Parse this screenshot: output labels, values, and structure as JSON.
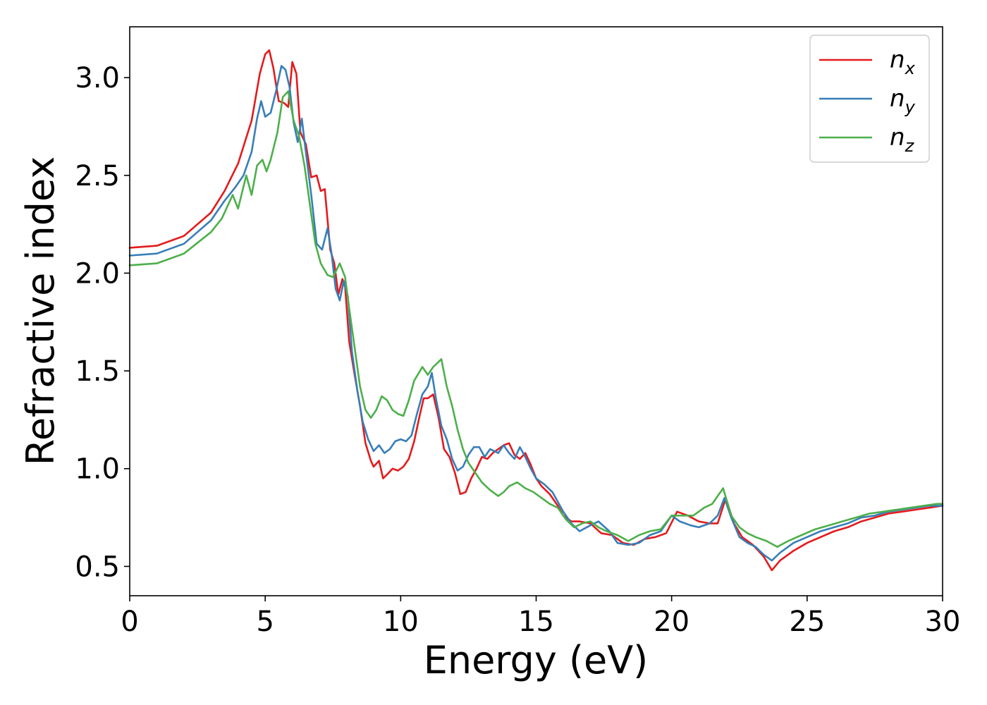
{
  "chart_data": {
    "type": "line",
    "title": "",
    "xlabel": "Energy (eV)",
    "ylabel": "Refractive index",
    "xlim": [
      0,
      30
    ],
    "ylim": [
      0.35,
      3.26
    ],
    "xticks": [
      0,
      5,
      10,
      15,
      20,
      25,
      30
    ],
    "xtick_labels": [
      "0",
      "5",
      "10",
      "15",
      "20",
      "25",
      "30"
    ],
    "yticks": [
      0.5,
      1.0,
      1.5,
      2.0,
      2.5,
      3.0
    ],
    "ytick_labels": [
      "0.5",
      "1.0",
      "1.5",
      "2.0",
      "2.5",
      "3.0"
    ],
    "grid": false,
    "legend_position": "top-right",
    "series": [
      {
        "name": "n",
        "subscript": "x",
        "color": "#e41a1c",
        "points": [
          [
            0,
            2.13
          ],
          [
            1,
            2.14
          ],
          [
            2,
            2.19
          ],
          [
            3,
            2.31
          ],
          [
            3.5,
            2.42
          ],
          [
            4,
            2.56
          ],
          [
            4.5,
            2.78
          ],
          [
            4.8,
            3.02
          ],
          [
            5.0,
            3.12
          ],
          [
            5.15,
            3.14
          ],
          [
            5.3,
            3.05
          ],
          [
            5.5,
            2.88
          ],
          [
            5.7,
            2.87
          ],
          [
            5.85,
            2.85
          ],
          [
            6.0,
            3.08
          ],
          [
            6.15,
            3.02
          ],
          [
            6.3,
            2.72
          ],
          [
            6.5,
            2.66
          ],
          [
            6.7,
            2.49
          ],
          [
            6.9,
            2.5
          ],
          [
            7.05,
            2.42
          ],
          [
            7.2,
            2.43
          ],
          [
            7.4,
            2.12
          ],
          [
            7.55,
            2.05
          ],
          [
            7.7,
            1.89
          ],
          [
            7.85,
            1.97
          ],
          [
            7.95,
            1.93
          ],
          [
            8.1,
            1.65
          ],
          [
            8.3,
            1.48
          ],
          [
            8.5,
            1.32
          ],
          [
            8.7,
            1.13
          ],
          [
            8.9,
            1.04
          ],
          [
            9.0,
            1.01
          ],
          [
            9.2,
            1.04
          ],
          [
            9.35,
            0.95
          ],
          [
            9.5,
            0.97
          ],
          [
            9.7,
            1.0
          ],
          [
            9.9,
            0.99
          ],
          [
            10.1,
            1.01
          ],
          [
            10.3,
            1.05
          ],
          [
            10.5,
            1.14
          ],
          [
            10.7,
            1.27
          ],
          [
            10.85,
            1.36
          ],
          [
            11.0,
            1.36
          ],
          [
            11.2,
            1.38
          ],
          [
            11.4,
            1.26
          ],
          [
            11.6,
            1.1
          ],
          [
            11.8,
            1.06
          ],
          [
            12.0,
            0.98
          ],
          [
            12.2,
            0.87
          ],
          [
            12.4,
            0.88
          ],
          [
            12.6,
            0.95
          ],
          [
            12.8,
            1.0
          ],
          [
            13.0,
            1.06
          ],
          [
            13.2,
            1.05
          ],
          [
            13.4,
            1.08
          ],
          [
            13.6,
            1.1
          ],
          [
            13.8,
            1.12
          ],
          [
            14.0,
            1.13
          ],
          [
            14.2,
            1.07
          ],
          [
            14.4,
            1.05
          ],
          [
            14.6,
            1.08
          ],
          [
            14.8,
            1.02
          ],
          [
            15.0,
            0.95
          ],
          [
            15.2,
            0.91
          ],
          [
            15.5,
            0.87
          ],
          [
            15.8,
            0.81
          ],
          [
            16.0,
            0.76
          ],
          [
            16.3,
            0.73
          ],
          [
            16.6,
            0.73
          ],
          [
            17.0,
            0.72
          ],
          [
            17.4,
            0.67
          ],
          [
            17.8,
            0.66
          ],
          [
            18.2,
            0.62
          ],
          [
            18.6,
            0.61
          ],
          [
            19.0,
            0.64
          ],
          [
            19.4,
            0.65
          ],
          [
            19.8,
            0.67
          ],
          [
            20.2,
            0.78
          ],
          [
            20.6,
            0.76
          ],
          [
            21.0,
            0.73
          ],
          [
            21.4,
            0.72
          ],
          [
            21.7,
            0.72
          ],
          [
            22.0,
            0.85
          ],
          [
            22.3,
            0.72
          ],
          [
            22.6,
            0.65
          ],
          [
            23.0,
            0.61
          ],
          [
            23.4,
            0.55
          ],
          [
            23.7,
            0.48
          ],
          [
            24.0,
            0.53
          ],
          [
            24.5,
            0.58
          ],
          [
            25.0,
            0.62
          ],
          [
            25.5,
            0.65
          ],
          [
            26.0,
            0.68
          ],
          [
            26.5,
            0.7
          ],
          [
            27.0,
            0.73
          ],
          [
            27.5,
            0.75
          ],
          [
            28.0,
            0.77
          ],
          [
            28.5,
            0.78
          ],
          [
            29.0,
            0.79
          ],
          [
            29.5,
            0.8
          ],
          [
            30.0,
            0.81
          ]
        ]
      },
      {
        "name": "n",
        "subscript": "y",
        "color": "#377eb8",
        "points": [
          [
            0,
            2.09
          ],
          [
            1,
            2.1
          ],
          [
            2,
            2.15
          ],
          [
            3,
            2.27
          ],
          [
            3.5,
            2.37
          ],
          [
            3.9,
            2.44
          ],
          [
            4.2,
            2.5
          ],
          [
            4.5,
            2.62
          ],
          [
            4.7,
            2.79
          ],
          [
            4.85,
            2.88
          ],
          [
            5.0,
            2.8
          ],
          [
            5.2,
            2.82
          ],
          [
            5.4,
            2.93
          ],
          [
            5.6,
            3.06
          ],
          [
            5.75,
            3.04
          ],
          [
            5.9,
            2.95
          ],
          [
            6.05,
            2.77
          ],
          [
            6.2,
            2.67
          ],
          [
            6.35,
            2.79
          ],
          [
            6.5,
            2.62
          ],
          [
            6.7,
            2.4
          ],
          [
            6.9,
            2.15
          ],
          [
            7.1,
            2.12
          ],
          [
            7.3,
            2.23
          ],
          [
            7.45,
            2.1
          ],
          [
            7.6,
            1.92
          ],
          [
            7.75,
            1.86
          ],
          [
            7.9,
            1.96
          ],
          [
            8.05,
            1.88
          ],
          [
            8.2,
            1.6
          ],
          [
            8.4,
            1.4
          ],
          [
            8.6,
            1.24
          ],
          [
            8.8,
            1.15
          ],
          [
            9.0,
            1.09
          ],
          [
            9.2,
            1.12
          ],
          [
            9.4,
            1.08
          ],
          [
            9.6,
            1.1
          ],
          [
            9.8,
            1.14
          ],
          [
            10.0,
            1.15
          ],
          [
            10.2,
            1.14
          ],
          [
            10.4,
            1.17
          ],
          [
            10.6,
            1.28
          ],
          [
            10.8,
            1.38
          ],
          [
            11.0,
            1.42
          ],
          [
            11.15,
            1.49
          ],
          [
            11.3,
            1.36
          ],
          [
            11.5,
            1.22
          ],
          [
            11.7,
            1.15
          ],
          [
            11.9,
            1.05
          ],
          [
            12.1,
            0.99
          ],
          [
            12.3,
            1.01
          ],
          [
            12.5,
            1.07
          ],
          [
            12.7,
            1.11
          ],
          [
            12.9,
            1.11
          ],
          [
            13.1,
            1.06
          ],
          [
            13.3,
            1.1
          ],
          [
            13.6,
            1.08
          ],
          [
            13.8,
            1.12
          ],
          [
            14.0,
            1.08
          ],
          [
            14.2,
            1.05
          ],
          [
            14.4,
            1.11
          ],
          [
            14.6,
            1.06
          ],
          [
            14.8,
            1.0
          ],
          [
            15.0,
            0.95
          ],
          [
            15.3,
            0.92
          ],
          [
            15.6,
            0.88
          ],
          [
            16.0,
            0.78
          ],
          [
            16.3,
            0.72
          ],
          [
            16.6,
            0.68
          ],
          [
            17.0,
            0.71
          ],
          [
            17.3,
            0.73
          ],
          [
            17.7,
            0.68
          ],
          [
            18.0,
            0.62
          ],
          [
            18.4,
            0.61
          ],
          [
            18.8,
            0.62
          ],
          [
            19.2,
            0.66
          ],
          [
            19.6,
            0.68
          ],
          [
            20.0,
            0.76
          ],
          [
            20.3,
            0.73
          ],
          [
            20.7,
            0.71
          ],
          [
            21.0,
            0.7
          ],
          [
            21.4,
            0.72
          ],
          [
            21.7,
            0.76
          ],
          [
            21.95,
            0.85
          ],
          [
            22.2,
            0.75
          ],
          [
            22.5,
            0.65
          ],
          [
            22.8,
            0.62
          ],
          [
            23.1,
            0.6
          ],
          [
            23.4,
            0.56
          ],
          [
            23.7,
            0.53
          ],
          [
            24.0,
            0.57
          ],
          [
            24.5,
            0.62
          ],
          [
            25.0,
            0.65
          ],
          [
            25.5,
            0.68
          ],
          [
            26.0,
            0.7
          ],
          [
            26.5,
            0.72
          ],
          [
            27.0,
            0.75
          ],
          [
            27.5,
            0.76
          ],
          [
            28.0,
            0.78
          ],
          [
            28.5,
            0.79
          ],
          [
            29.0,
            0.8
          ],
          [
            29.5,
            0.81
          ],
          [
            30.0,
            0.81
          ]
        ]
      },
      {
        "name": "n",
        "subscript": "z",
        "color": "#4daf4a",
        "points": [
          [
            0,
            2.04
          ],
          [
            1,
            2.05
          ],
          [
            2,
            2.1
          ],
          [
            3,
            2.21
          ],
          [
            3.4,
            2.28
          ],
          [
            3.8,
            2.4
          ],
          [
            4.0,
            2.33
          ],
          [
            4.3,
            2.5
          ],
          [
            4.5,
            2.4
          ],
          [
            4.7,
            2.55
          ],
          [
            4.9,
            2.58
          ],
          [
            5.05,
            2.52
          ],
          [
            5.2,
            2.58
          ],
          [
            5.45,
            2.72
          ],
          [
            5.65,
            2.9
          ],
          [
            5.85,
            2.93
          ],
          [
            6.05,
            2.78
          ],
          [
            6.25,
            2.7
          ],
          [
            6.45,
            2.55
          ],
          [
            6.65,
            2.35
          ],
          [
            6.85,
            2.15
          ],
          [
            7.05,
            2.05
          ],
          [
            7.3,
            1.99
          ],
          [
            7.5,
            1.98
          ],
          [
            7.75,
            2.05
          ],
          [
            7.95,
            1.98
          ],
          [
            8.1,
            1.82
          ],
          [
            8.3,
            1.62
          ],
          [
            8.5,
            1.42
          ],
          [
            8.7,
            1.3
          ],
          [
            8.9,
            1.26
          ],
          [
            9.1,
            1.3
          ],
          [
            9.3,
            1.37
          ],
          [
            9.5,
            1.35
          ],
          [
            9.7,
            1.3
          ],
          [
            9.9,
            1.28
          ],
          [
            10.1,
            1.27
          ],
          [
            10.3,
            1.35
          ],
          [
            10.5,
            1.45
          ],
          [
            10.8,
            1.52
          ],
          [
            11.0,
            1.48
          ],
          [
            11.2,
            1.52
          ],
          [
            11.5,
            1.56
          ],
          [
            11.7,
            1.42
          ],
          [
            11.9,
            1.32
          ],
          [
            12.1,
            1.2
          ],
          [
            12.3,
            1.1
          ],
          [
            12.5,
            1.03
          ],
          [
            12.8,
            0.97
          ],
          [
            13.0,
            0.93
          ],
          [
            13.3,
            0.89
          ],
          [
            13.6,
            0.86
          ],
          [
            13.8,
            0.88
          ],
          [
            14.0,
            0.91
          ],
          [
            14.3,
            0.93
          ],
          [
            14.6,
            0.9
          ],
          [
            14.9,
            0.88
          ],
          [
            15.2,
            0.85
          ],
          [
            15.5,
            0.82
          ],
          [
            15.8,
            0.8
          ],
          [
            16.1,
            0.74
          ],
          [
            16.4,
            0.7
          ],
          [
            16.7,
            0.72
          ],
          [
            17.0,
            0.73
          ],
          [
            17.3,
            0.7
          ],
          [
            17.6,
            0.68
          ],
          [
            18.0,
            0.66
          ],
          [
            18.4,
            0.63
          ],
          [
            18.8,
            0.66
          ],
          [
            19.2,
            0.68
          ],
          [
            19.6,
            0.69
          ],
          [
            20.0,
            0.76
          ],
          [
            20.4,
            0.76
          ],
          [
            20.8,
            0.76
          ],
          [
            21.2,
            0.8
          ],
          [
            21.5,
            0.82
          ],
          [
            21.9,
            0.9
          ],
          [
            22.2,
            0.76
          ],
          [
            22.5,
            0.7
          ],
          [
            22.8,
            0.67
          ],
          [
            23.1,
            0.65
          ],
          [
            23.5,
            0.63
          ],
          [
            23.9,
            0.6
          ],
          [
            24.3,
            0.63
          ],
          [
            24.8,
            0.66
          ],
          [
            25.3,
            0.69
          ],
          [
            25.8,
            0.71
          ],
          [
            26.3,
            0.73
          ],
          [
            26.8,
            0.75
          ],
          [
            27.3,
            0.77
          ],
          [
            27.8,
            0.78
          ],
          [
            28.3,
            0.79
          ],
          [
            28.8,
            0.8
          ],
          [
            29.3,
            0.81
          ],
          [
            29.8,
            0.82
          ],
          [
            30.0,
            0.82
          ]
        ]
      }
    ]
  }
}
